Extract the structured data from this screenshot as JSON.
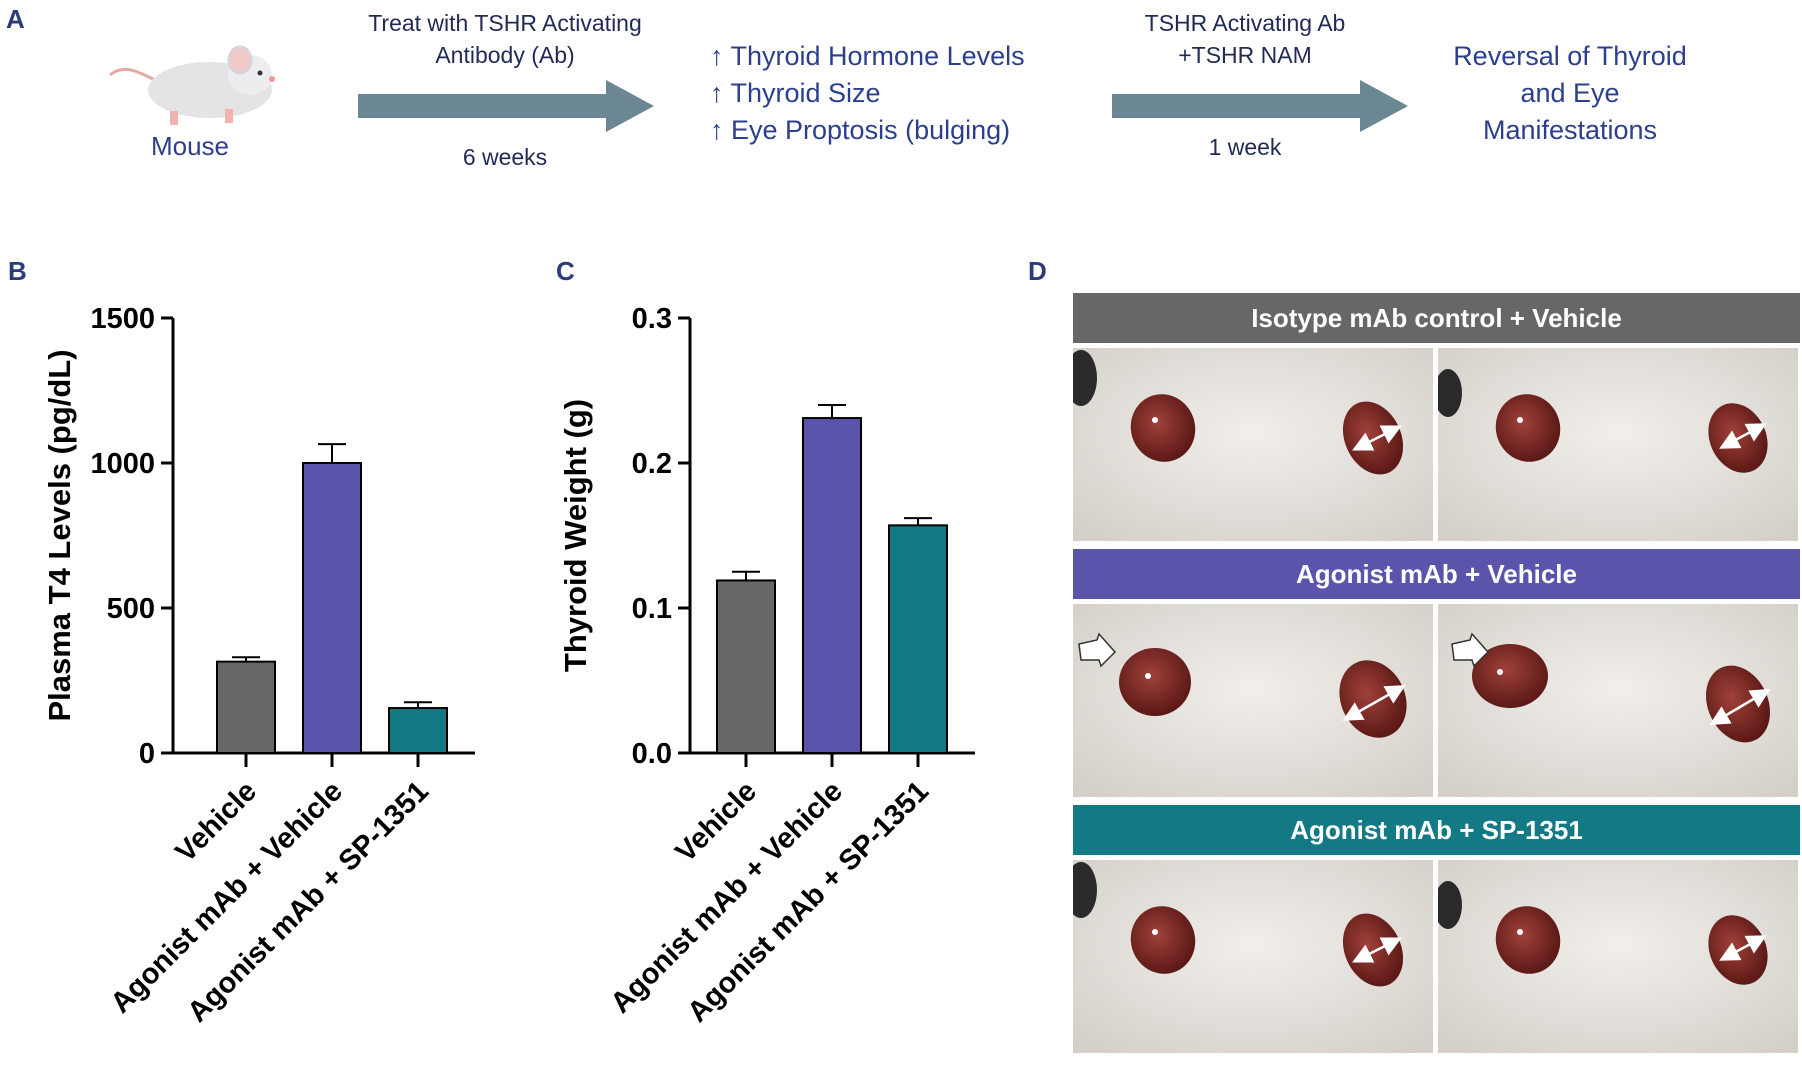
{
  "panelA": {
    "letter": "A",
    "mouse_label": "Mouse",
    "step1_line1": "Treat with TSHR Activating",
    "step1_line2": "Antibody (Ab)",
    "step1_duration": "6 weeks",
    "effects": [
      "↑ Thyroid Hormone Levels",
      "↑ Thyroid Size",
      "↑ Eye Proptosis (bulging)"
    ],
    "step2_line1": "TSHR Activating Ab",
    "step2_line2": "+TSHR NAM",
    "step2_duration": "1 week",
    "outcome_lines": [
      "Reversal of Thyroid",
      "and Eye",
      "Manifestations"
    ]
  },
  "panelB": {
    "letter": "B"
  },
  "panelC": {
    "letter": "C"
  },
  "panelD": {
    "letter": "D",
    "banners": [
      {
        "label": "Isotype mAb control + Vehicle",
        "color": "#676767"
      },
      {
        "label": "Agonist mAb + Vehicle",
        "color": "#5a55ab"
      },
      {
        "label": "Agonist mAb + SP-1351",
        "color": "#137a85"
      }
    ]
  },
  "colors": {
    "vehicle": "#676767",
    "agonist_vehicle": "#5a55ab",
    "agonist_sp": "#137a85",
    "arrow": "#6b8793",
    "accent_text": "#2c3f8f"
  },
  "chart_data": [
    {
      "type": "bar",
      "panel": "B",
      "categories": [
        "Vehicle",
        "Agonist mAb + Vehicle",
        "Agonist mAb + SP-1351"
      ],
      "values": [
        315,
        1000,
        155
      ],
      "errors": [
        15,
        65,
        20
      ],
      "ylabel": "Plasma T4 Levels (pg/dL)",
      "ylim": [
        0,
        1500
      ],
      "yticks": [
        0,
        500,
        1000,
        1500
      ],
      "ytick_labels": [
        "0",
        "500",
        "1000",
        "1500"
      ],
      "grid": false
    },
    {
      "type": "bar",
      "panel": "C",
      "categories": [
        "Vehicle",
        "Agonist mAb + Vehicle",
        "Agonist mAb + SP-1351"
      ],
      "values": [
        0.119,
        0.231,
        0.157
      ],
      "errors": [
        0.006,
        0.009,
        0.005
      ],
      "ylabel": "Thyroid Weight (g)",
      "ylim": [
        0,
        0.3
      ],
      "yticks": [
        0.0,
        0.1,
        0.2,
        0.3
      ],
      "ytick_labels": [
        "0.0",
        "0.1",
        "0.2",
        "0.3"
      ],
      "grid": false
    }
  ]
}
